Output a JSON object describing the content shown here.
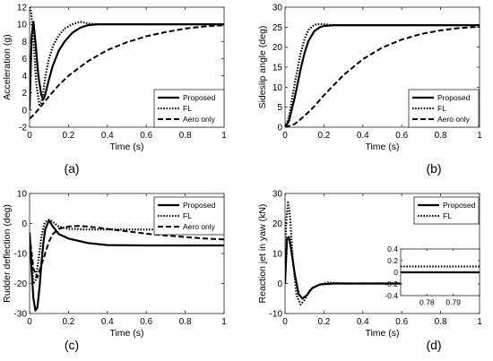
{
  "chart_data": [
    {
      "type": "line",
      "ylabel": "Acceleration (g)",
      "xlabel": "Time (s)",
      "caption": "(a)",
      "xlim": [
        0,
        1
      ],
      "ylim": [
        -2,
        12
      ],
      "xticks": [
        0,
        0.2,
        0.4,
        0.6,
        0.8,
        1
      ],
      "xtick_labels": [
        "0",
        "0.2",
        "0.4",
        "0.6",
        "0.8",
        "1"
      ],
      "yticks": [
        -2,
        0,
        2,
        4,
        6,
        8,
        10,
        12
      ],
      "ytick_labels": [
        "-2",
        "0",
        "2",
        "4",
        "6",
        "8",
        "10",
        "12"
      ],
      "legend_position": "bottom-right",
      "series": [
        {
          "name": "Proposed",
          "style": "solid",
          "x": [
            0,
            0.01,
            0.02,
            0.03,
            0.045,
            0.06,
            0.07,
            0.08,
            0.1,
            0.12,
            0.15,
            0.18,
            0.22,
            0.26,
            0.3,
            0.35,
            0.4,
            1.0
          ],
          "y": [
            0,
            8.5,
            10.3,
            8.0,
            4.0,
            1.8,
            1.2,
            1.8,
            3.6,
            5.2,
            6.9,
            8.0,
            9.0,
            9.6,
            9.9,
            10.0,
            10.0,
            10.0
          ]
        },
        {
          "name": "FL",
          "style": "dotted",
          "x": [
            0,
            0.008,
            0.015,
            0.025,
            0.035,
            0.05,
            0.06,
            0.07,
            0.08,
            0.1,
            0.12,
            0.15,
            0.18,
            0.22,
            0.26,
            0.3,
            0.35,
            1.0
          ],
          "y": [
            12,
            11.5,
            9.5,
            6.5,
            3.0,
            0.6,
            0.8,
            2.0,
            3.8,
            6.0,
            7.5,
            8.7,
            9.5,
            10.0,
            10.3,
            10.1,
            10.0,
            10.0
          ]
        },
        {
          "name": "Aero only",
          "style": "dashed",
          "x": [
            0,
            0.02,
            0.05,
            0.1,
            0.15,
            0.2,
            0.3,
            0.4,
            0.5,
            0.6,
            0.7,
            0.8,
            0.9,
            1.0
          ],
          "y": [
            -1.0,
            -0.6,
            0.2,
            1.6,
            2.9,
            4.0,
            5.7,
            7.0,
            7.9,
            8.6,
            9.1,
            9.5,
            9.75,
            9.9
          ]
        }
      ]
    },
    {
      "type": "line",
      "ylabel": "Sideslip angle (deg)",
      "xlabel": "Time (s)",
      "caption": "(b)",
      "xlim": [
        0,
        1
      ],
      "ylim": [
        0,
        30
      ],
      "xticks": [
        0,
        0.2,
        0.4,
        0.6,
        0.8,
        1
      ],
      "xtick_labels": [
        "0",
        "0.2",
        "0.4",
        "0.6",
        "0.8",
        "1"
      ],
      "yticks": [
        0,
        5,
        10,
        15,
        20,
        25,
        30
      ],
      "ytick_labels": [
        "0",
        "5",
        "10",
        "15",
        "20",
        "25",
        "30"
      ],
      "legend_position": "bottom-right",
      "series": [
        {
          "name": "Proposed",
          "style": "solid",
          "x": [
            0,
            0.02,
            0.05,
            0.08,
            0.1,
            0.12,
            0.15,
            0.18,
            0.2,
            0.25,
            0.3,
            1.0
          ],
          "y": [
            0,
            1.5,
            7.5,
            14.5,
            18.5,
            21.5,
            24.0,
            25.0,
            25.3,
            25.5,
            25.5,
            25.5
          ]
        },
        {
          "name": "FL",
          "style": "dotted",
          "x": [
            0,
            0.02,
            0.05,
            0.08,
            0.1,
            0.12,
            0.15,
            0.18,
            0.2,
            0.25,
            0.3,
            1.0
          ],
          "y": [
            0,
            2.5,
            11.0,
            18.5,
            22.0,
            24.3,
            25.6,
            25.8,
            25.7,
            25.5,
            25.5,
            25.5
          ]
        },
        {
          "name": "Aero only",
          "style": "dashed",
          "x": [
            0,
            0.05,
            0.1,
            0.15,
            0.2,
            0.3,
            0.4,
            0.5,
            0.6,
            0.7,
            0.8,
            0.9,
            1.0
          ],
          "y": [
            0,
            0.8,
            2.8,
            5.2,
            8.0,
            13.0,
            17.0,
            19.9,
            21.9,
            23.3,
            24.2,
            24.8,
            25.1
          ]
        }
      ]
    },
    {
      "type": "line",
      "ylabel": "Rudder deflection (deg)",
      "xlabel": "Time (s)",
      "caption": "(c)",
      "xlim": [
        0,
        1
      ],
      "ylim": [
        -30,
        10
      ],
      "xticks": [
        0,
        0.2,
        0.4,
        0.6,
        0.8,
        1
      ],
      "xtick_labels": [
        "0",
        "0.2",
        "0.4",
        "0.6",
        "0.8",
        "1"
      ],
      "yticks": [
        -30,
        -20,
        -10,
        0,
        10
      ],
      "ytick_labels": [
        "-30",
        "-20",
        "-10",
        "0",
        "10"
      ],
      "legend_position": "top-right",
      "series": [
        {
          "name": "Proposed",
          "style": "solid",
          "x": [
            0,
            0.01,
            0.02,
            0.03,
            0.04,
            0.05,
            0.06,
            0.07,
            0.08,
            0.1,
            0.12,
            0.15,
            0.2,
            0.3,
            0.4,
            0.6,
            0.8,
            1.0
          ],
          "y": [
            -3,
            -15,
            -25,
            -29,
            -28,
            -22,
            -14,
            -7,
            -2,
            1.0,
            -1.0,
            -3.5,
            -5.0,
            -6.5,
            -7.2,
            -7.3,
            -7.3,
            -7.3
          ]
        },
        {
          "name": "FL",
          "style": "dotted",
          "x": [
            0,
            0.01,
            0.02,
            0.03,
            0.04,
            0.05,
            0.06,
            0.07,
            0.08,
            0.1,
            0.12,
            0.15,
            0.2,
            0.3,
            0.5,
            1.0
          ],
          "y": [
            -3,
            -13,
            -20,
            -19,
            -15,
            -10,
            -5,
            -1.5,
            0.5,
            1.2,
            0.5,
            -1.0,
            -1.8,
            -2.0,
            -2.0,
            -2.0
          ]
        },
        {
          "name": "Aero only",
          "style": "dashed",
          "x": [
            0,
            0.02,
            0.04,
            0.06,
            0.08,
            0.1,
            0.12,
            0.15,
            0.2,
            0.25,
            0.3,
            0.4,
            0.5,
            0.6,
            0.7,
            0.8,
            0.9,
            1.0
          ],
          "y": [
            -4,
            -15,
            -18,
            -14,
            -10,
            -6,
            -3.5,
            -1.8,
            -1.0,
            -0.8,
            -1.0,
            -1.8,
            -2.6,
            -3.4,
            -4.0,
            -4.5,
            -5.0,
            -5.3
          ]
        }
      ]
    },
    {
      "type": "line",
      "ylabel": "Reaction jet in yaw (kN)",
      "xlabel": "Time (s)",
      "caption": "(d)",
      "xlim": [
        0,
        1
      ],
      "ylim": [
        -10,
        30
      ],
      "xticks": [
        0,
        0.2,
        0.4,
        0.6,
        0.8,
        1
      ],
      "xtick_labels": [
        "0",
        "0.2",
        "0.4",
        "0.6",
        "0.8",
        "1"
      ],
      "yticks": [
        -10,
        0,
        10,
        20,
        30
      ],
      "ytick_labels": [
        "-10",
        "0",
        "10",
        "20",
        "30"
      ],
      "legend_position": "top-right",
      "series": [
        {
          "name": "Proposed",
          "style": "solid",
          "x": [
            0,
            0.01,
            0.02,
            0.03,
            0.05,
            0.07,
            0.09,
            0.11,
            0.14,
            0.18,
            0.25,
            0.35,
            1.0
          ],
          "y": [
            0,
            15,
            15.5,
            12,
            3,
            -3.5,
            -5,
            -4,
            -1.5,
            -0.3,
            0,
            0,
            0
          ]
        },
        {
          "name": "FL",
          "style": "dotted",
          "x": [
            0,
            0.005,
            0.015,
            0.025,
            0.04,
            0.06,
            0.08,
            0.1,
            0.13,
            0.17,
            0.22,
            0.3,
            1.0
          ],
          "y": [
            0,
            20,
            27,
            23,
            8,
            -4,
            -7,
            -5.5,
            -2,
            -0.5,
            0.3,
            0,
            0
          ]
        }
      ],
      "inset": {
        "xlim": [
          0.77,
          0.8
        ],
        "ylim": [
          -0.4,
          0.4
        ],
        "xticks": [
          0.78,
          0.79
        ],
        "xtick_labels": [
          "0.78",
          "0.79"
        ],
        "yticks": [
          -0.4,
          -0.2,
          0,
          0.2,
          0.4
        ],
        "ytick_labels": [
          "-0.4",
          "-0.2",
          "0",
          "0.2",
          "0.4"
        ],
        "series": [
          {
            "name": "Proposed",
            "style": "solid",
            "x": [
              0.77,
              0.8
            ],
            "y": [
              0.0,
              0.0
            ]
          },
          {
            "name": "FL",
            "style": "dotted",
            "x": [
              0.77,
              0.8
            ],
            "y": [
              0.1,
              0.1
            ]
          }
        ]
      }
    }
  ]
}
